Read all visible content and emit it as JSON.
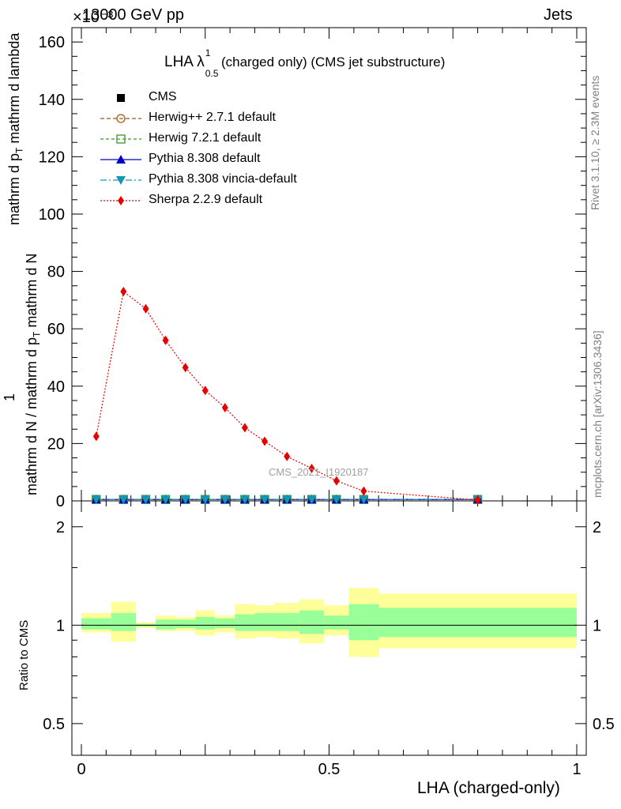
{
  "header": {
    "left": "13000 GeV pp",
    "right": "Jets",
    "exponent": "×10⁻³"
  },
  "side_labels": {
    "rivet": "Rivet 3.1.10, ≥ 2.3M events",
    "mcplots": "mcplots.cern.ch [arXiv:1306.3436]"
  },
  "colors": {
    "cms": "#000000",
    "herwigpp": "#a05a14",
    "herwig7": "#3c961e",
    "pythia": "#0000c8",
    "vincia": "#1496b4",
    "sherpa": "#e60000",
    "band_inner": "#99ff99",
    "band_outer": "#ffff99"
  },
  "chart_data": [
    {
      "type": "line",
      "title": "LHA λ",
      "title_sup": "1",
      "title_sub": "0.5",
      "title_rest": "(charged only) (CMS jet substructure)",
      "watermark": "CMS_2021_I1920187",
      "xlabel": "LHA (charged-only)",
      "ylabel": {
        "prefix": "1",
        "denominator": "mathrm d N / mathrm d p",
        "sub": "T",
        "suffix": " mathrm d N",
        "main": "mathrm d p",
        "main_sub": "T",
        "main_rest": " mathrm d lambda"
      },
      "xlim": [
        0,
        1
      ],
      "ylim": [
        0,
        165
      ],
      "yticks": [
        0,
        20,
        40,
        60,
        80,
        100,
        120,
        140,
        160
      ],
      "legend_position": "top-left",
      "legend": [
        {
          "key": "cms",
          "label": "CMS"
        },
        {
          "key": "herwigpp",
          "label": "Herwig++ 2.7.1 default"
        },
        {
          "key": "herwig7",
          "label": "Herwig 7.2.1 default"
        },
        {
          "key": "pythia",
          "label": "Pythia 8.308 default"
        },
        {
          "key": "vincia",
          "label": "Pythia 8.308 vincia-default"
        },
        {
          "key": "sherpa",
          "label": "Sherpa 2.2.9 default"
        }
      ],
      "x": [
        0.03,
        0.085,
        0.13,
        0.17,
        0.21,
        0.25,
        0.29,
        0.33,
        0.37,
        0.415,
        0.465,
        0.515,
        0.57,
        0.8
      ],
      "series": [
        {
          "name": "CMS",
          "values": [
            0.5,
            0.5,
            0.5,
            0.5,
            0.5,
            0.5,
            0.5,
            0.5,
            0.5,
            0.5,
            0.5,
            0.5,
            0.5,
            0.5
          ]
        },
        {
          "name": "Herwig++ 2.7.1 default",
          "values": [
            0.5,
            0.5,
            0.5,
            0.5,
            0.5,
            0.5,
            0.5,
            0.5,
            0.5,
            0.5,
            0.5,
            0.5,
            0.5,
            0.5
          ]
        },
        {
          "name": "Herwig 7.2.1 default",
          "values": [
            0.5,
            0.5,
            0.5,
            0.5,
            0.5,
            0.5,
            0.5,
            0.5,
            0.5,
            0.5,
            0.5,
            0.5,
            0.5,
            0.5
          ]
        },
        {
          "name": "Pythia 8.308 default",
          "values": [
            0.5,
            0.5,
            0.5,
            0.5,
            0.5,
            0.5,
            0.5,
            0.5,
            0.5,
            0.5,
            0.5,
            0.5,
            0.5,
            0.5
          ]
        },
        {
          "name": "Pythia 8.308 vincia-default",
          "values": [
            0.5,
            0.5,
            0.5,
            0.5,
            0.5,
            0.5,
            0.5,
            0.5,
            0.5,
            0.5,
            0.5,
            0.5,
            0.5,
            0.5
          ]
        },
        {
          "name": "Sherpa 2.2.9 default",
          "values": [
            22.5,
            73,
            67,
            56,
            46.5,
            38.5,
            32.5,
            25.5,
            20.8,
            15.5,
            11.3,
            7,
            3.4,
            0.3
          ]
        }
      ]
    },
    {
      "type": "area",
      "ylabel": "Ratio to CMS",
      "xlabel": "LHA (charged-only)",
      "scale": "log",
      "ylim": [
        0.4,
        2.4
      ],
      "yticks": [
        0.5,
        1,
        2
      ],
      "xticks": [
        0,
        0.5,
        1
      ],
      "xtick_labels": [
        "0",
        "0.5",
        "1"
      ],
      "bins": [
        {
          "lo": 0.0,
          "hi": 0.06,
          "inner": [
            0.97,
            1.05
          ],
          "outer": [
            0.95,
            1.09
          ]
        },
        {
          "lo": 0.06,
          "hi": 0.11,
          "inner": [
            0.96,
            1.09
          ],
          "outer": [
            0.89,
            1.18
          ]
        },
        {
          "lo": 0.11,
          "hi": 0.15,
          "inner": [
            0.99,
            1.01
          ],
          "outer": [
            0.98,
            1.02
          ]
        },
        {
          "lo": 0.15,
          "hi": 0.19,
          "inner": [
            0.97,
            1.04
          ],
          "outer": [
            0.96,
            1.07
          ]
        },
        {
          "lo": 0.19,
          "hi": 0.23,
          "inner": [
            0.98,
            1.04
          ],
          "outer": [
            0.96,
            1.06
          ]
        },
        {
          "lo": 0.23,
          "hi": 0.27,
          "inner": [
            0.97,
            1.06
          ],
          "outer": [
            0.93,
            1.11
          ]
        },
        {
          "lo": 0.27,
          "hi": 0.31,
          "inner": [
            0.98,
            1.05
          ],
          "outer": [
            0.95,
            1.07
          ]
        },
        {
          "lo": 0.31,
          "hi": 0.35,
          "inner": [
            0.96,
            1.08
          ],
          "outer": [
            0.91,
            1.16
          ]
        },
        {
          "lo": 0.35,
          "hi": 0.39,
          "inner": [
            0.96,
            1.09
          ],
          "outer": [
            0.92,
            1.15
          ]
        },
        {
          "lo": 0.39,
          "hi": 0.44,
          "inner": [
            0.96,
            1.09
          ],
          "outer": [
            0.91,
            1.17
          ]
        },
        {
          "lo": 0.44,
          "hi": 0.49,
          "inner": [
            0.94,
            1.11
          ],
          "outer": [
            0.88,
            1.2
          ]
        },
        {
          "lo": 0.49,
          "hi": 0.54,
          "inner": [
            0.97,
            1.07
          ],
          "outer": [
            0.93,
            1.15
          ]
        },
        {
          "lo": 0.54,
          "hi": 0.6,
          "inner": [
            0.9,
            1.16
          ],
          "outer": [
            0.8,
            1.3
          ]
        },
        {
          "lo": 0.6,
          "hi": 1.0,
          "inner": [
            0.92,
            1.13
          ],
          "outer": [
            0.85,
            1.25
          ]
        }
      ]
    }
  ]
}
